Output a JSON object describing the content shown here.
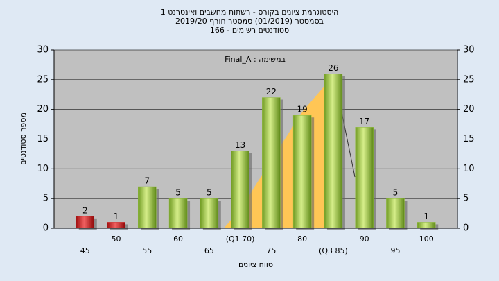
{
  "chart_data": {
    "type": "bar",
    "title": [
      "היסטוגרמת ציונים בקורס - רשתות מחשבים ואינטרנט 1",
      "בסמסטר (01/2019) סמסטר חורף 2019/20",
      "סטודנטים רשומים - 166"
    ],
    "annotation": "במשימה : Final_A",
    "x_label": "טווח ציונים",
    "y_label": "מספר סטודנטים",
    "categories": [
      "45",
      "50",
      "55",
      "60",
      "65",
      "(Q1 70)",
      "75",
      "80",
      "(Q3 85)",
      "90",
      "95",
      "100"
    ],
    "values": [
      2,
      1,
      7,
      5,
      5,
      13,
      22,
      19,
      26,
      17,
      5,
      1
    ],
    "colors": [
      "#d42020",
      "#d42020",
      "#8fbc3a",
      "#8fbc3a",
      "#8fbc3a",
      "#8fbc3a",
      "#8fbc3a",
      "#8fbc3a",
      "#8fbc3a",
      "#8fbc3a",
      "#8fbc3a",
      "#8fbc3a"
    ],
    "ylim": [
      0,
      30
    ],
    "yticks": [
      0,
      5,
      10,
      15,
      20,
      25,
      30
    ],
    "y2lim": [
      0,
      30
    ],
    "y2ticks": [
      0,
      5,
      10,
      15,
      20,
      25,
      30
    ],
    "grid": true
  }
}
